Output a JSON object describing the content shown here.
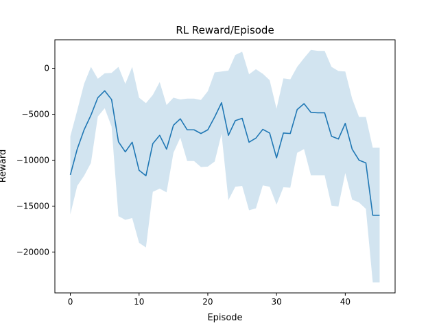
{
  "chart_data": {
    "type": "line",
    "title": "RL Reward/Episode",
    "xlabel": "Episode",
    "ylabel": "Reward",
    "xlim": [
      -2.25,
      47.25
    ],
    "ylim": [
      -24450,
      3100
    ],
    "xticks": [
      0,
      10,
      20,
      30,
      40
    ],
    "yticks": [
      0,
      -5000,
      -10000,
      -15000,
      -20000
    ],
    "ytick_labels": [
      "0",
      "−5000",
      "−10000",
      "−15000",
      "−20000"
    ],
    "grid": false,
    "legend": "none",
    "colors": {
      "line": "#1f77b4",
      "band": "#1f77b4"
    },
    "band_opacity": 0.2,
    "series": [
      {
        "x": [
          0,
          1,
          2,
          3,
          4,
          5,
          6,
          7,
          8,
          9,
          10,
          11,
          12,
          13,
          14,
          15,
          16,
          17,
          18,
          19,
          20,
          21,
          22,
          23,
          24,
          25,
          26,
          27,
          28,
          29,
          30,
          31,
          32,
          33,
          34,
          35,
          36,
          37,
          38,
          39,
          40,
          41,
          42,
          43,
          44,
          45
        ],
        "y": [
          -11600,
          -8800,
          -6700,
          -5100,
          -3200,
          -2450,
          -3400,
          -8000,
          -9100,
          -8050,
          -11100,
          -11700,
          -8200,
          -7300,
          -8800,
          -6200,
          -5500,
          -6700,
          -6700,
          -7100,
          -6700,
          -5300,
          -3750,
          -7300,
          -5700,
          -5450,
          -8050,
          -7600,
          -6650,
          -7050,
          -9750,
          -7050,
          -7100,
          -4500,
          -3850,
          -4800,
          -4850,
          -4850,
          -7400,
          -7700,
          -6000,
          -8800,
          -10000,
          -10300,
          -16000,
          -16000
        ],
        "upper": [
          -7400,
          -4600,
          -1700,
          150,
          -1150,
          -550,
          -500,
          150,
          -1700,
          150,
          -3200,
          -3800,
          -2900,
          -1500,
          -4000,
          -3200,
          -3400,
          -3300,
          -3300,
          -3450,
          -2500,
          -450,
          -350,
          -250,
          1450,
          1800,
          -650,
          -100,
          -600,
          -1300,
          -4400,
          -1100,
          -1200,
          150,
          1100,
          2000,
          1900,
          1900,
          150,
          -300,
          -350,
          -3300,
          -5300,
          -5300,
          -8650,
          -8650
        ],
        "lower": [
          -15900,
          -12800,
          -11700,
          -10300,
          -5250,
          -4350,
          -6350,
          -16100,
          -16500,
          -16300,
          -19000,
          -19500,
          -13450,
          -13100,
          -13500,
          -9200,
          -7550,
          -10100,
          -10100,
          -10750,
          -10700,
          -10150,
          -7150,
          -14350,
          -12900,
          -12800,
          -15450,
          -15250,
          -12750,
          -12900,
          -14850,
          -12950,
          -13000,
          -9200,
          -8800,
          -11650,
          -11650,
          -11650,
          -14950,
          -15050,
          -11400,
          -14300,
          -14600,
          -15300,
          -23300,
          -23300
        ]
      }
    ]
  }
}
